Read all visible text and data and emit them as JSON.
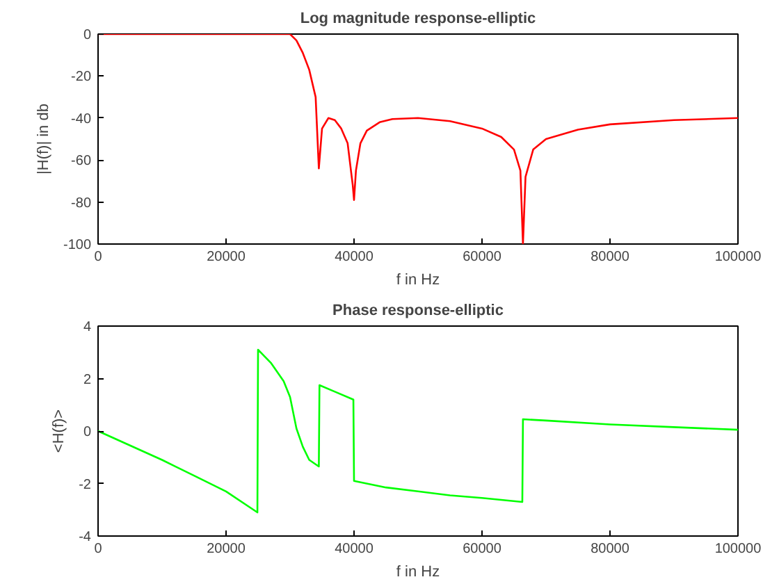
{
  "chart_data": [
    {
      "type": "line",
      "title": "Log magnitude response-elliptic",
      "xlabel": "f in Hz",
      "ylabel": "|H(f)| in db",
      "xlim": [
        0,
        100000
      ],
      "ylim": [
        -100,
        0
      ],
      "xticks": [
        0,
        20000,
        40000,
        60000,
        80000,
        100000
      ],
      "yticks": [
        -100,
        -80,
        -60,
        -40,
        -20,
        0
      ],
      "grid": false,
      "series": [
        {
          "color": "#ff0000",
          "x": [
            0,
            10000,
            20000,
            30000,
            31000,
            32000,
            33000,
            34000,
            34500,
            35000,
            36000,
            37000,
            38000,
            39000,
            39800,
            40000,
            40300,
            41000,
            42000,
            44000,
            46000,
            50000,
            55000,
            60000,
            63000,
            65000,
            66000,
            66400,
            66800,
            68000,
            70000,
            75000,
            80000,
            90000,
            100000
          ],
          "values": [
            0,
            0,
            0,
            0,
            -3,
            -9,
            -17,
            -30,
            -64,
            -45,
            -40,
            -41,
            -45,
            -52,
            -72,
            -79,
            -65,
            -52,
            -46,
            -42,
            -40.5,
            -40,
            -41.5,
            -45,
            -49,
            -55,
            -65,
            -100,
            -68,
            -55,
            -50,
            -45.5,
            -43,
            -41,
            -40
          ]
        }
      ]
    },
    {
      "type": "line",
      "title": "Phase response-elliptic",
      "xlabel": "f in Hz",
      "ylabel": "<H(f)>",
      "xlim": [
        0,
        100000
      ],
      "ylim": [
        -4,
        4
      ],
      "xticks": [
        0,
        20000,
        40000,
        60000,
        80000,
        100000
      ],
      "yticks": [
        -4,
        -2,
        0,
        2,
        4
      ],
      "grid": false,
      "series": [
        {
          "color": "#00ff00",
          "x": [
            0,
            5000,
            10000,
            15000,
            20000,
            24900,
            25000,
            27000,
            29000,
            30000,
            31000,
            32000,
            33000,
            34500,
            34600,
            37000,
            39900,
            40000,
            45000,
            50000,
            55000,
            60000,
            66300,
            66400,
            70000,
            80000,
            90000,
            100000
          ],
          "values": [
            0,
            -0.55,
            -1.1,
            -1.7,
            -2.3,
            -3.1,
            3.1,
            2.6,
            1.9,
            1.3,
            0.1,
            -0.6,
            -1.1,
            -1.35,
            1.75,
            1.5,
            1.2,
            -1.9,
            -2.15,
            -2.3,
            -2.45,
            -2.55,
            -2.7,
            0.45,
            0.4,
            0.25,
            0.15,
            0.05
          ]
        }
      ]
    }
  ]
}
